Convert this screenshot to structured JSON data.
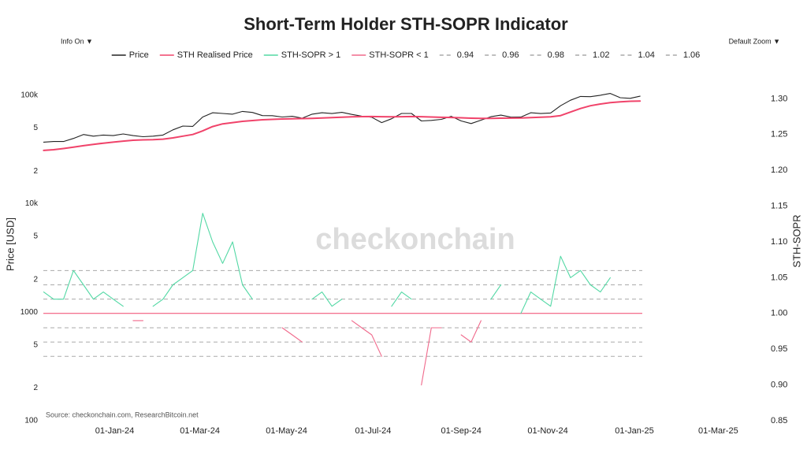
{
  "header": {
    "title": "Short-Term Holder STH-SOPR Indicator",
    "info_button": "Info On ▼",
    "zoom_button": "Default Zoom ▼",
    "watermark": "checkonchain",
    "source": "Source: checkonchain.com, ResearchBitcoin.net"
  },
  "chart_data": {
    "type": "line",
    "ylabel": "Price [USD]",
    "y2label": "STH-SOPR",
    "log_y": true,
    "grid": false,
    "x": [
      "2023-11-12",
      "2023-11-19",
      "2023-11-26",
      "2023-12-03",
      "2023-12-10",
      "2023-12-17",
      "2023-12-24",
      "2023-12-31",
      "2024-01-07",
      "2024-01-14",
      "2024-01-21",
      "2024-01-28",
      "2024-02-04",
      "2024-02-11",
      "2024-02-18",
      "2024-02-25",
      "2024-03-03",
      "2024-03-10",
      "2024-03-17",
      "2024-03-24",
      "2024-03-31",
      "2024-04-07",
      "2024-04-14",
      "2024-04-21",
      "2024-04-28",
      "2024-05-05",
      "2024-05-12",
      "2024-05-19",
      "2024-05-26",
      "2024-06-02",
      "2024-06-09",
      "2024-06-16",
      "2024-06-23",
      "2024-06-30",
      "2024-07-07",
      "2024-07-14",
      "2024-07-21",
      "2024-07-28",
      "2024-08-04",
      "2024-08-11",
      "2024-08-18",
      "2024-08-25",
      "2024-09-01",
      "2024-09-08",
      "2024-09-15",
      "2024-09-22",
      "2024-09-29",
      "2024-10-06",
      "2024-10-13",
      "2024-10-20",
      "2024-10-27",
      "2024-11-03",
      "2024-11-10",
      "2024-11-17",
      "2024-11-24",
      "2024-12-01",
      "2024-12-08",
      "2024-12-15",
      "2024-12-22",
      "2024-12-29",
      "2025-01-05"
    ],
    "xlim": [
      "2023-11-09",
      "2025-03-28"
    ],
    "xticks": [
      {
        "value": "2024-01-01",
        "label": "01-Jan-24"
      },
      {
        "value": "2024-03-01",
        "label": "01-Mar-24"
      },
      {
        "value": "2024-05-01",
        "label": "01-May-24"
      },
      {
        "value": "2024-07-01",
        "label": "01-Jul-24"
      },
      {
        "value": "2024-09-01",
        "label": "01-Sep-24"
      },
      {
        "value": "2024-11-01",
        "label": "01-Nov-24"
      },
      {
        "value": "2025-01-01",
        "label": "01-Jan-25"
      },
      {
        "value": "2025-03-01",
        "label": "01-Mar-25"
      }
    ],
    "ylim": [
      100,
      120000
    ],
    "yticks": [
      {
        "value": 100000,
        "label": "100k"
      },
      {
        "value": 50000,
        "label": "5"
      },
      {
        "value": 20000,
        "label": "2"
      },
      {
        "value": 10000,
        "label": "10k"
      },
      {
        "value": 5000,
        "label": "5"
      },
      {
        "value": 2000,
        "label": "2"
      },
      1000,
      {
        "value": 500,
        "label": "5"
      },
      {
        "value": 200,
        "label": "2"
      },
      100
    ],
    "y2lim": [
      0.85,
      1.317
    ],
    "y2ticks": [
      {
        "value": 1.3,
        "label": "1.30"
      },
      1.25,
      {
        "value": 1.2,
        "label": "1.20"
      },
      1.15,
      {
        "value": 1.1,
        "label": "1.10"
      },
      1.05,
      {
        "value": 1,
        "label": "1.00"
      },
      0.95,
      {
        "value": 0.9,
        "label": "0.90"
      },
      0.85
    ],
    "series": [
      {
        "name": "Price",
        "color": "#222222",
        "axis": "y",
        "values": [
          37000,
          37500,
          37500,
          40000,
          43500,
          42000,
          43000,
          42500,
          44000,
          42500,
          41500,
          42000,
          43000,
          48000,
          52000,
          51700,
          63000,
          69000,
          68000,
          67000,
          71000,
          69500,
          65000,
          64900,
          63000,
          64000,
          61500,
          67000,
          69000,
          67800,
          69600,
          66600,
          64200,
          62700,
          56000,
          60800,
          68000,
          68000,
          58000,
          58700,
          60000,
          64000,
          58000,
          54900,
          59000,
          63500,
          65600,
          62800,
          62900,
          69000,
          67900,
          68700,
          80000,
          90000,
          97500,
          97000,
          100000,
          104000,
          95000,
          93700,
          98000
        ]
      },
      {
        "name": "STH Realised Price",
        "color": "#f0436a",
        "axis": "y",
        "values": [
          31000,
          31500,
          32300,
          33200,
          34300,
          35300,
          36200,
          37000,
          37800,
          38500,
          38800,
          39000,
          39400,
          40500,
          42000,
          43500,
          47000,
          51500,
          54500,
          56000,
          57500,
          58500,
          59500,
          60000,
          60500,
          60800,
          61000,
          61300,
          61800,
          62300,
          62800,
          63300,
          63600,
          63700,
          63500,
          63300,
          63500,
          63700,
          63500,
          63000,
          62600,
          62400,
          62000,
          61500,
          61200,
          61300,
          61500,
          61600,
          61700,
          62200,
          62700,
          63200,
          65000,
          70000,
          75500,
          80000,
          83000,
          85500,
          87000,
          88000,
          88500
        ]
      },
      {
        "name": "STH-SOPR > 1",
        "color": "#52d8a4",
        "axis": "y2",
        "values": [
          1.03,
          1.02,
          1.02,
          1.06,
          1.04,
          1.02,
          1.03,
          1.02,
          1.01,
          null,
          null,
          1.01,
          1.02,
          1.04,
          1.05,
          1.06,
          1.14,
          1.1,
          1.07,
          1.1,
          1.04,
          1.02,
          null,
          1.01,
          null,
          null,
          null,
          1.02,
          1.03,
          1.01,
          1.02,
          null,
          null,
          null,
          null,
          1.01,
          1.03,
          1.02,
          null,
          null,
          null,
          1.02,
          null,
          null,
          null,
          1.02,
          1.04,
          null,
          1.0,
          1.03,
          1.02,
          1.01,
          1.08,
          1.05,
          1.06,
          1.04,
          1.03,
          1.05,
          null,
          1.01,
          null
        ]
      },
      {
        "name": "STH-SOPR < 1",
        "color": "#f06a8c",
        "axis": "y2",
        "values": [
          null,
          null,
          null,
          null,
          null,
          null,
          null,
          null,
          null,
          0.99,
          0.99,
          null,
          null,
          null,
          null,
          null,
          null,
          null,
          null,
          null,
          null,
          null,
          0.99,
          null,
          0.98,
          0.97,
          0.96,
          null,
          null,
          null,
          null,
          0.99,
          0.98,
          0.97,
          0.94,
          null,
          null,
          null,
          0.9,
          0.98,
          0.98,
          null,
          0.97,
          0.96,
          0.99,
          null,
          null,
          0.99,
          null,
          null,
          null,
          null,
          null,
          null,
          null,
          null,
          null,
          null,
          0.99,
          null,
          0.99
        ]
      }
    ],
    "reference_lines": [
      {
        "name": "0.94",
        "value": 0.94,
        "color": "#aaaaaa"
      },
      {
        "name": "0.96",
        "value": 0.96,
        "color": "#aaaaaa"
      },
      {
        "name": "0.98",
        "value": 0.98,
        "color": "#aaaaaa"
      },
      {
        "name": "1.02",
        "value": 1.02,
        "color": "#aaaaaa"
      },
      {
        "name": "1.04",
        "value": 1.04,
        "color": "#aaaaaa"
      },
      {
        "name": "1.06",
        "value": 1.06,
        "color": "#aaaaaa"
      }
    ],
    "baseline": {
      "value": 1,
      "color": "#f0436a"
    }
  }
}
